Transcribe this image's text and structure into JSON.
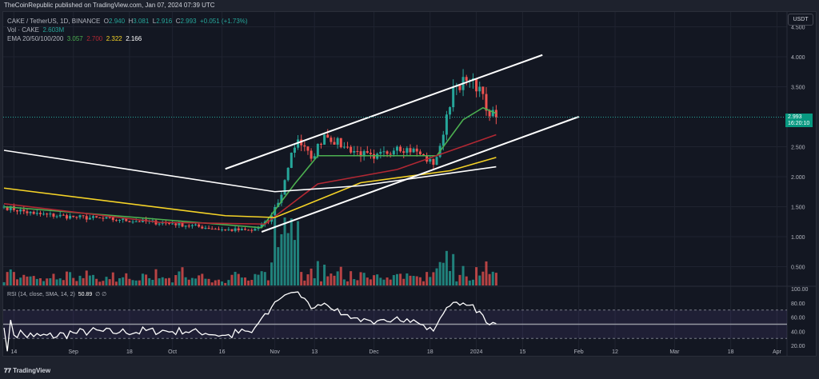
{
  "header": {
    "published": "TheCoinRepublic published on TradingView.com, Jan 07, 2024 07:39 UTC"
  },
  "legend": {
    "symbol": "CAKE / TetherUS, 1D, BINANCE",
    "o_label": "O",
    "o": "2.940",
    "h_label": "H",
    "h": "3.081",
    "l_label": "L",
    "l": "2.916",
    "c_label": "C",
    "c": "2.993",
    "change": "+0.051 (+1.73%)",
    "vol_label": "Vol · CAKE",
    "vol": "2.603M",
    "ema_label": "EMA 20/50/100/200",
    "ema20": "3.057",
    "ema50": "2.700",
    "ema100": "2.322",
    "ema200": "2.166",
    "rsi_label": "RSI (14, close, SMA, 14, 2)",
    "rsi_value": "50.89",
    "rsi_extra": "∅ ∅"
  },
  "axis": {
    "currency": "USDT",
    "last_price": "2.993",
    "countdown": "16:20:10"
  },
  "footer": {
    "brand": "TradingView"
  },
  "colors": {
    "bg": "#131722",
    "up": "#26a69a",
    "down": "#ef5350",
    "ema20": "#4caf50",
    "ema50": "#b22833",
    "ema100": "#f5d327",
    "ema200": "#ffffff",
    "rsi": "#ffffff",
    "rsi_band": "#7e57c2"
  },
  "chart_data": [
    {
      "type": "candlestick",
      "title": "CAKE / TetherUS, 1D, BINANCE",
      "x_range": [
        "2023-08-11",
        "2024-04-03"
      ],
      "ylim": [
        0.25,
        4.55
      ],
      "y_ticks": [
        "0.500",
        "1.000",
        "1.500",
        "2.000",
        "2.500",
        "3.500",
        "4.000",
        "4.500"
      ],
      "x_ticks": [
        {
          "d": "2023-08-14",
          "t": "14"
        },
        {
          "d": "2023-09-01",
          "t": "Sep"
        },
        {
          "d": "2023-09-18",
          "t": "18"
        },
        {
          "d": "2023-10-01",
          "t": "Oct"
        },
        {
          "d": "2023-10-16",
          "t": "16"
        },
        {
          "d": "2023-11-01",
          "t": "Nov"
        },
        {
          "d": "2023-11-13",
          "t": "13"
        },
        {
          "d": "2023-12-01",
          "t": "Dec"
        },
        {
          "d": "2023-12-18",
          "t": "18"
        },
        {
          "d": "2024-01-01",
          "t": "2024"
        },
        {
          "d": "2024-01-15",
          "t": "15"
        },
        {
          "d": "2024-02-01",
          "t": "Feb"
        },
        {
          "d": "2024-02-12",
          "t": "12"
        },
        {
          "d": "2024-03-01",
          "t": "Mar"
        },
        {
          "d": "2024-03-18",
          "t": "18"
        },
        {
          "d": "2024-04-01",
          "t": "Apr"
        }
      ],
      "close_path": [
        [
          "2023-08-11",
          1.5
        ],
        [
          "2023-08-20",
          1.38
        ],
        [
          "2023-09-01",
          1.33
        ],
        [
          "2023-09-15",
          1.28
        ],
        [
          "2023-10-01",
          1.22
        ],
        [
          "2023-10-16",
          1.12
        ],
        [
          "2023-10-25",
          1.1
        ],
        [
          "2023-10-30",
          1.25
        ],
        [
          "2023-11-03",
          1.7
        ],
        [
          "2023-11-06",
          2.4
        ],
        [
          "2023-11-08",
          2.62
        ],
        [
          "2023-11-12",
          2.3
        ],
        [
          "2023-11-16",
          2.7
        ],
        [
          "2023-11-22",
          2.5
        ],
        [
          "2023-12-01",
          2.3
        ],
        [
          "2023-12-08",
          2.5
        ],
        [
          "2023-12-14",
          2.42
        ],
        [
          "2023-12-19",
          2.2
        ],
        [
          "2023-12-22",
          2.7
        ],
        [
          "2023-12-25",
          3.5
        ],
        [
          "2023-12-29",
          3.6
        ],
        [
          "2024-01-02",
          3.5
        ],
        [
          "2024-01-04",
          3.1
        ],
        [
          "2024-01-07",
          2.993
        ]
      ],
      "ema": [
        {
          "name": "EMA 20",
          "color": "#4caf50",
          "points": [
            [
              "2023-08-11",
              1.5
            ],
            [
              "2023-10-28",
              1.15
            ],
            [
              "2023-11-07",
              1.88
            ],
            [
              "2023-11-14",
              2.35
            ],
            [
              "2023-12-04",
              2.35
            ],
            [
              "2023-12-20",
              2.35
            ],
            [
              "2023-12-28",
              2.95
            ],
            [
              "2024-01-03",
              3.15
            ],
            [
              "2024-01-07",
              3.057
            ]
          ]
        },
        {
          "name": "EMA 50",
          "color": "#b22833",
          "points": [
            [
              "2023-08-11",
              1.55
            ],
            [
              "2023-09-27",
              1.24
            ],
            [
              "2023-10-29",
              1.21
            ],
            [
              "2023-11-14",
              1.88
            ],
            [
              "2023-12-08",
              2.12
            ],
            [
              "2024-01-07",
              2.7
            ]
          ]
        },
        {
          "name": "EMA 100",
          "color": "#f5d327",
          "points": [
            [
              "2023-08-11",
              1.81
            ],
            [
              "2023-10-17",
              1.35
            ],
            [
              "2023-11-01",
              1.32
            ],
            [
              "2023-11-27",
              1.9
            ],
            [
              "2023-12-24",
              2.1
            ],
            [
              "2024-01-07",
              2.322
            ]
          ]
        },
        {
          "name": "EMA 200",
          "color": "#ffffff",
          "points": [
            [
              "2023-08-11",
              2.44
            ],
            [
              "2023-11-01",
              1.75
            ],
            [
              "2023-11-27",
              1.85
            ],
            [
              "2024-01-07",
              2.166
            ]
          ]
        }
      ],
      "trendlines": [
        [
          [
            "2023-10-17",
            2.13
          ],
          [
            "2024-01-21",
            4.03
          ]
        ],
        [
          [
            "2023-10-28",
            1.08
          ],
          [
            "2024-02-01",
            3.0
          ]
        ]
      ],
      "volume_peak_date": "2023-11-05"
    },
    {
      "type": "line",
      "title": "RSI (14, close, SMA, 14, 2)",
      "ylim": [
        10,
        100
      ],
      "y_ticks": [
        "20.00",
        "40.00",
        "60.00",
        "80.00",
        "100.00"
      ],
      "bands": [
        30,
        50,
        70
      ],
      "last_value": 50.89
    }
  ]
}
